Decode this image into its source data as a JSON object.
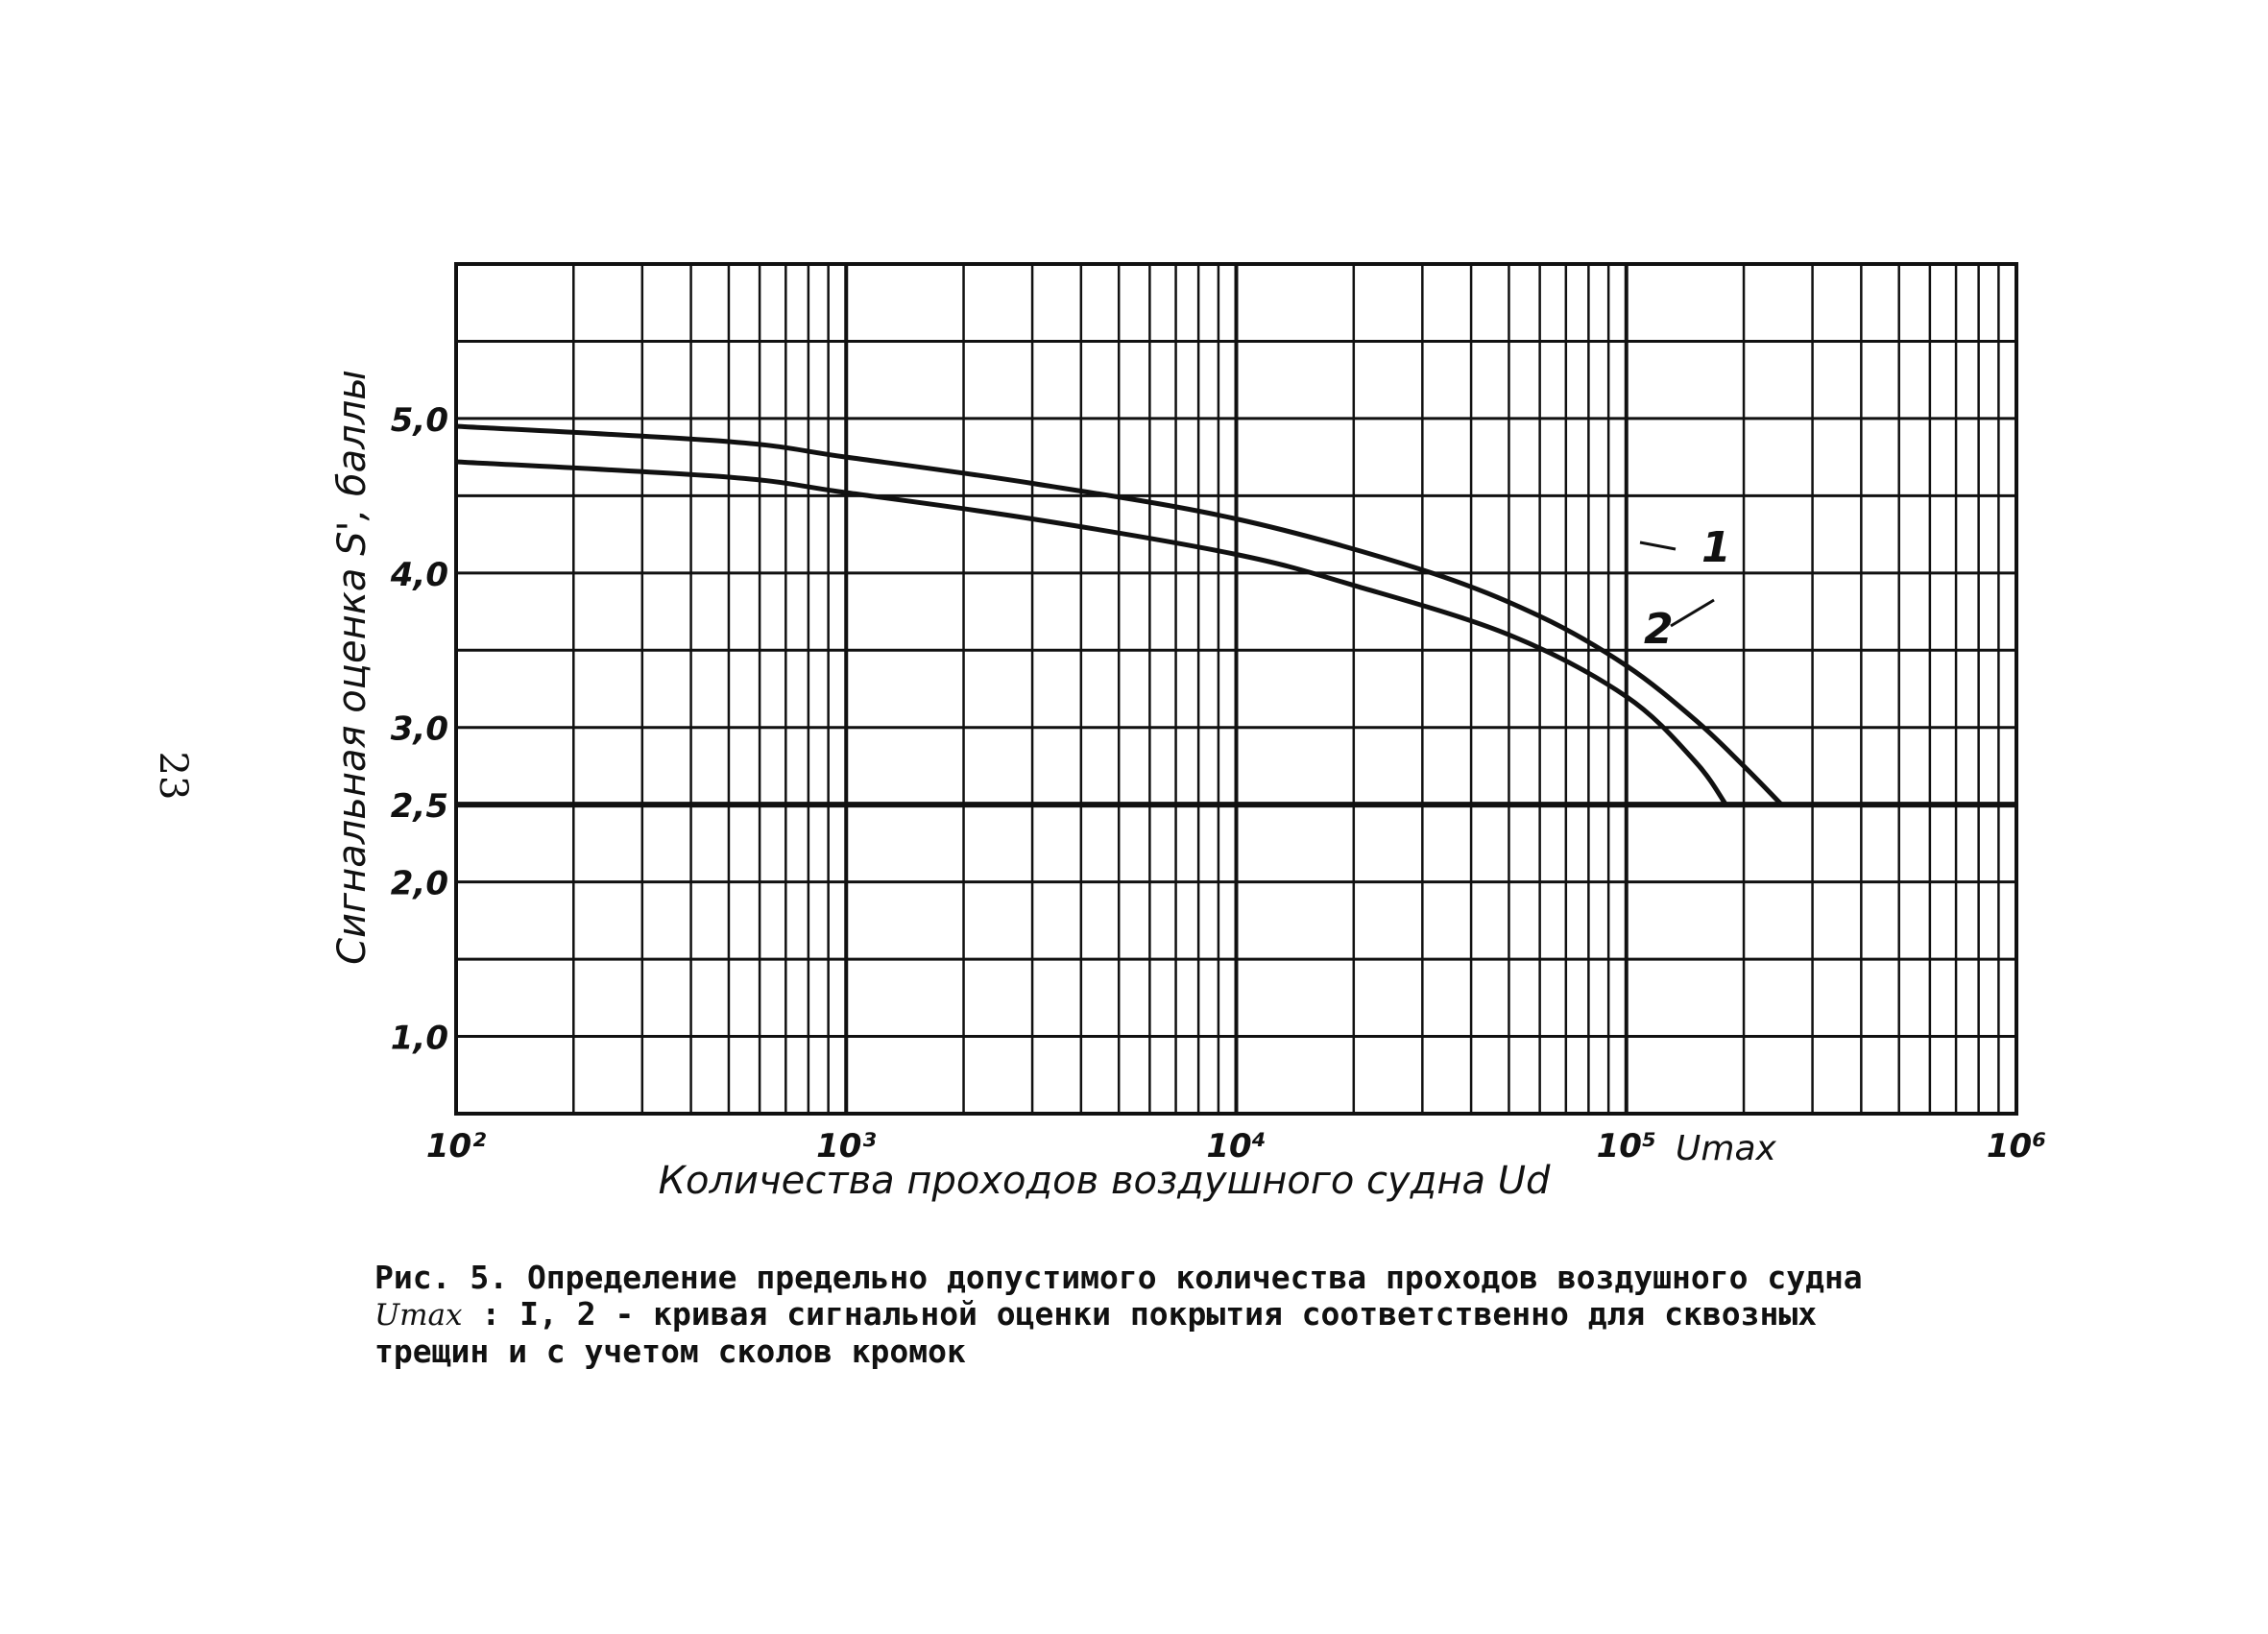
{
  "page_number": "23",
  "caption": {
    "line1": "Рис. 5. Определение предельно допустимого количества проходов воздушного судна",
    "umax_symbol": "Umax",
    "line2_rest": " : I, 2 - кривая сигнальной оценки покрытия соответственно для сквозных",
    "line3": "трещин и с учетом сколов кромок"
  },
  "chart_data": {
    "type": "line",
    "x_scale": "log",
    "xlim": [
      100,
      1000000
    ],
    "ylim": [
      0.5,
      6.0
    ],
    "grid": true,
    "xlabel": "Количества проходов воздушного судна Ud",
    "ylabel": "Сигнальная оценка S', баллы",
    "x_tick_labels": [
      {
        "x": 100,
        "label": "10²"
      },
      {
        "x": 1000,
        "label": "10³"
      },
      {
        "x": 10000,
        "label": "10⁴"
      },
      {
        "x": 100000,
        "label": "10⁵"
      },
      {
        "x": 1000000,
        "label": "10⁶"
      }
    ],
    "y_tick_labels": [
      {
        "y": 5.0,
        "label": "5,0"
      },
      {
        "y": 4.0,
        "label": "4,0"
      },
      {
        "y": 3.0,
        "label": "3,0"
      },
      {
        "y": 2.5,
        "label": "2,5"
      },
      {
        "y": 2.0,
        "label": "2,0"
      },
      {
        "y": 1.0,
        "label": "1,0"
      }
    ],
    "annotation_umax": {
      "x": 180000,
      "label": "Umax"
    },
    "threshold_line": {
      "y": 2.5,
      "x_range": [
        100,
        1000000
      ]
    },
    "series": [
      {
        "name": "1",
        "x": [
          100,
          500,
          1000,
          3000,
          10000,
          30000,
          60000,
          100000,
          150000,
          200000,
          250000
        ],
        "y": [
          4.95,
          4.85,
          4.75,
          4.58,
          4.35,
          4.02,
          3.72,
          3.4,
          3.05,
          2.75,
          2.5
        ]
      },
      {
        "name": "2",
        "x": [
          100,
          500,
          1000,
          3000,
          10000,
          20000,
          50000,
          100000,
          150000,
          180000
        ],
        "y": [
          4.72,
          4.62,
          4.52,
          4.35,
          4.12,
          3.92,
          3.6,
          3.2,
          2.78,
          2.5
        ]
      }
    ]
  }
}
